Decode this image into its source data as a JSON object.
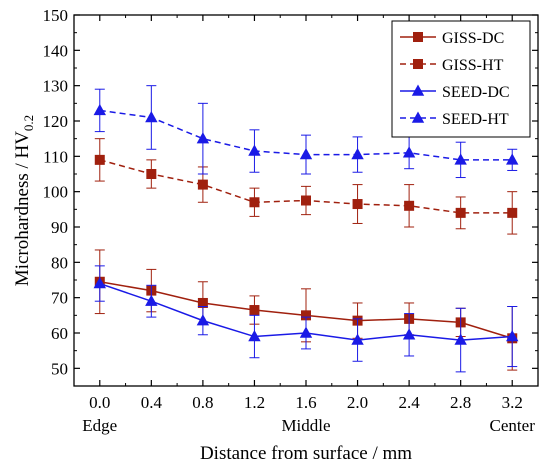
{
  "chart_data": {
    "type": "line",
    "xlabel": "Distance from surface / mm",
    "ylabel_main": "Microhardness / HV",
    "ylabel_sub": "0.2",
    "x": [
      0.0,
      0.4,
      0.8,
      1.2,
      1.6,
      2.0,
      2.4,
      2.8,
      3.2
    ],
    "x_tick_labels": [
      "0.0",
      "0.4",
      "0.8",
      "1.2",
      "1.6",
      "2.0",
      "2.4",
      "2.8",
      "3.2"
    ],
    "xlim": [
      -0.2,
      3.4
    ],
    "ylim": [
      45,
      150
    ],
    "y_ticks": [
      50,
      60,
      70,
      80,
      90,
      100,
      110,
      120,
      130,
      140,
      150
    ],
    "y_tick_labels": [
      "50",
      "60",
      "70",
      "80",
      "90",
      "100",
      "110",
      "120",
      "130",
      "140",
      "150"
    ],
    "region_labels": [
      {
        "x": 0.0,
        "text": "Edge"
      },
      {
        "x": 1.6,
        "text": "Middle"
      },
      {
        "x": 3.2,
        "text": "Center"
      }
    ],
    "legend_position": "top-right",
    "grid": false,
    "series": [
      {
        "name": "GISS-DC",
        "color": "#a0200e",
        "marker": "square",
        "dashed": false,
        "values": [
          74.5,
          72,
          68.5,
          66.5,
          65,
          63.5,
          64,
          63,
          58.5
        ],
        "errors": [
          9,
          6,
          6,
          4,
          7.5,
          5,
          4.5,
          4,
          9
        ]
      },
      {
        "name": "GISS-HT",
        "color": "#a0200e",
        "marker": "square",
        "dashed": true,
        "values": [
          109,
          105,
          102,
          97,
          97.5,
          96.5,
          96,
          94,
          94
        ],
        "errors": [
          6,
          4,
          5,
          4,
          4,
          5.5,
          6,
          4.5,
          6
        ]
      },
      {
        "name": "SEED-DC",
        "color": "#1a1ae6",
        "marker": "triangle",
        "dashed": false,
        "values": [
          74,
          69,
          63.5,
          59,
          60,
          58,
          59.5,
          58,
          59
        ],
        "errors": [
          5,
          4.5,
          4,
          6,
          4.5,
          6,
          6,
          9,
          8.5
        ]
      },
      {
        "name": "SEED-HT",
        "color": "#1a1ae6",
        "marker": "triangle",
        "dashed": true,
        "values": [
          123,
          121,
          115,
          111.5,
          110.5,
          110.5,
          111,
          109,
          109
        ],
        "errors": [
          6,
          9,
          10,
          6,
          5.5,
          5,
          4.5,
          5,
          3
        ]
      }
    ]
  }
}
